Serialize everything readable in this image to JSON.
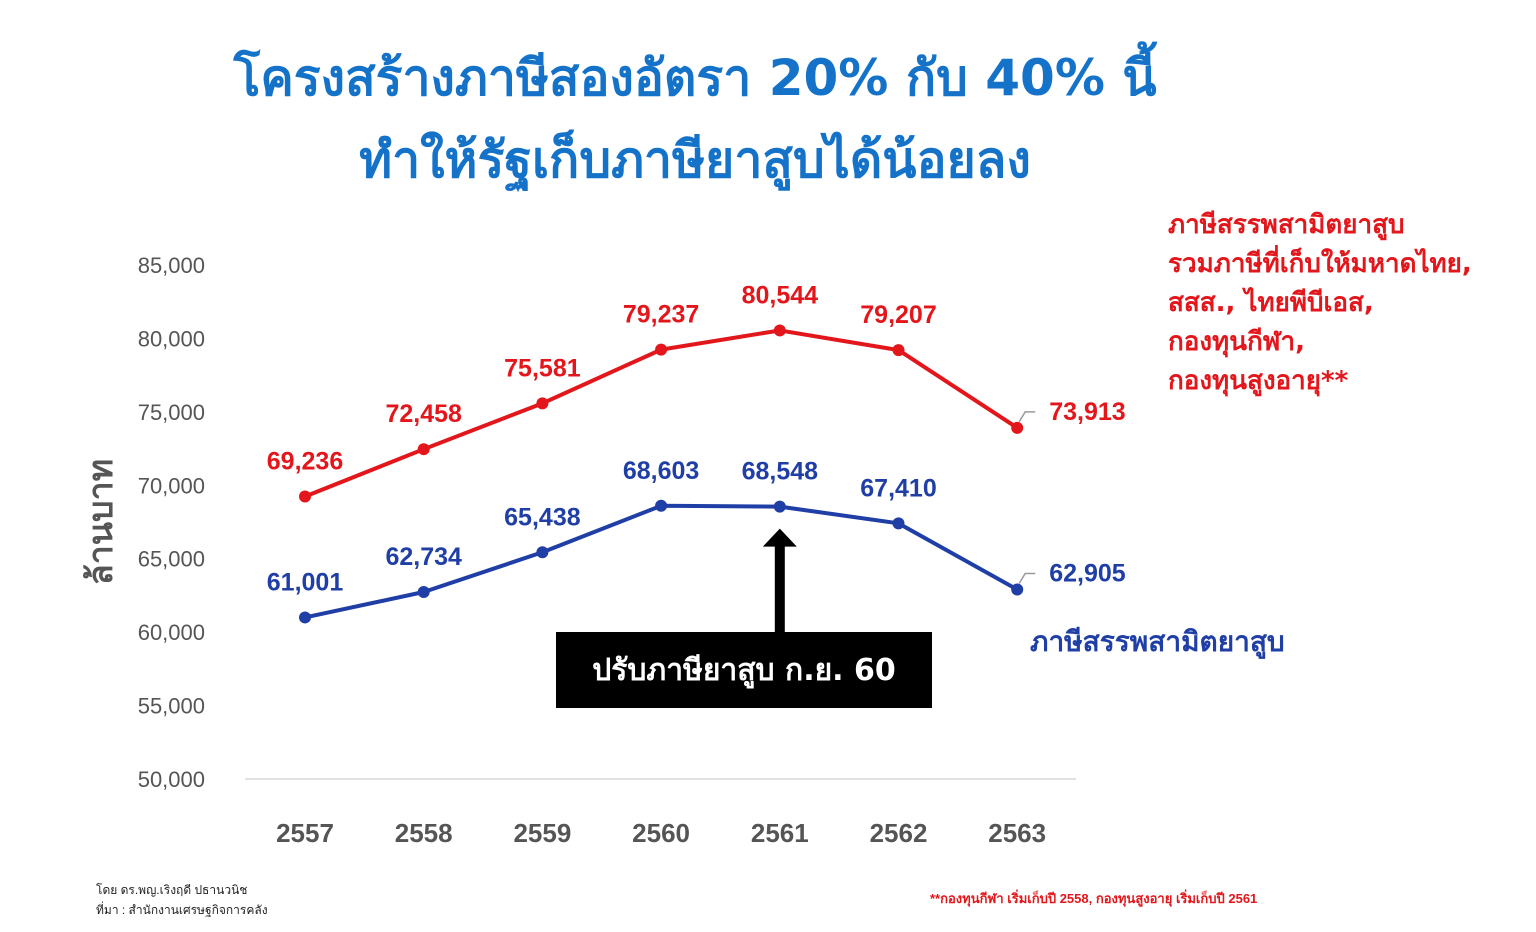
{
  "title": {
    "line1": "โครงสร้างภาษีสองอัตรา 20% กับ 40% นี้",
    "line2": "ทำให้รัฐเก็บภาษียาสูบได้น้อยลง"
  },
  "chart_data": {
    "type": "line",
    "categories": [
      "2557",
      "2558",
      "2559",
      "2560",
      "2561",
      "2562",
      "2563"
    ],
    "ylabel": "ล้านบาท",
    "ylim": [
      50000,
      85000
    ],
    "yticks": [
      "85,000",
      "80,000",
      "75,000",
      "70,000",
      "65,000",
      "60,000",
      "55,000",
      "50,000"
    ],
    "series": [
      {
        "name_lines": [
          "ภาษีสรรพสามิตยาสูบ",
          "รวมภาษีที่เก็บให้มหาดไทย,",
          "สสส., ไทยพีบีเอส,",
          "กองทุนกีฬา,",
          "กองทุนสูงอายุ**"
        ],
        "color": "#e3161b",
        "values": [
          69236,
          72458,
          75581,
          79237,
          80544,
          79207,
          73913
        ],
        "labels": [
          "69,236",
          "72,458",
          "75,581",
          "79,237",
          "80,544",
          "79,207",
          "73,913"
        ]
      },
      {
        "name": "ภาษีสรรพสามิตยาสูบ",
        "color": "#1f3ea6",
        "values": [
          61001,
          62734,
          65438,
          68603,
          68548,
          67410,
          62905
        ],
        "labels": [
          "61,001",
          "62,734",
          "65,438",
          "68,603",
          "68,548",
          "67,410",
          "62,905"
        ]
      }
    ],
    "annotation": {
      "text": "ปรับภาษียาสูบ ก.ย. 60",
      "x": "2561",
      "arrow": "up"
    },
    "grid": false
  },
  "footer": {
    "author": "โดย ดร.พญ.เริงฤดี ปธานวนิช",
    "source": "ที่มา : สำนักงานเศรษฐกิจการคลัง",
    "note": "**กองทุนกีฬา เริ่มเก็บปี 2558, กองทุนสูงอายุ เริ่มเก็บปี 2561"
  },
  "colors": {
    "title": "#1572c9",
    "red_series": "#e3161b",
    "blue_series": "#1f3ea6",
    "axis_text": "#555555"
  }
}
